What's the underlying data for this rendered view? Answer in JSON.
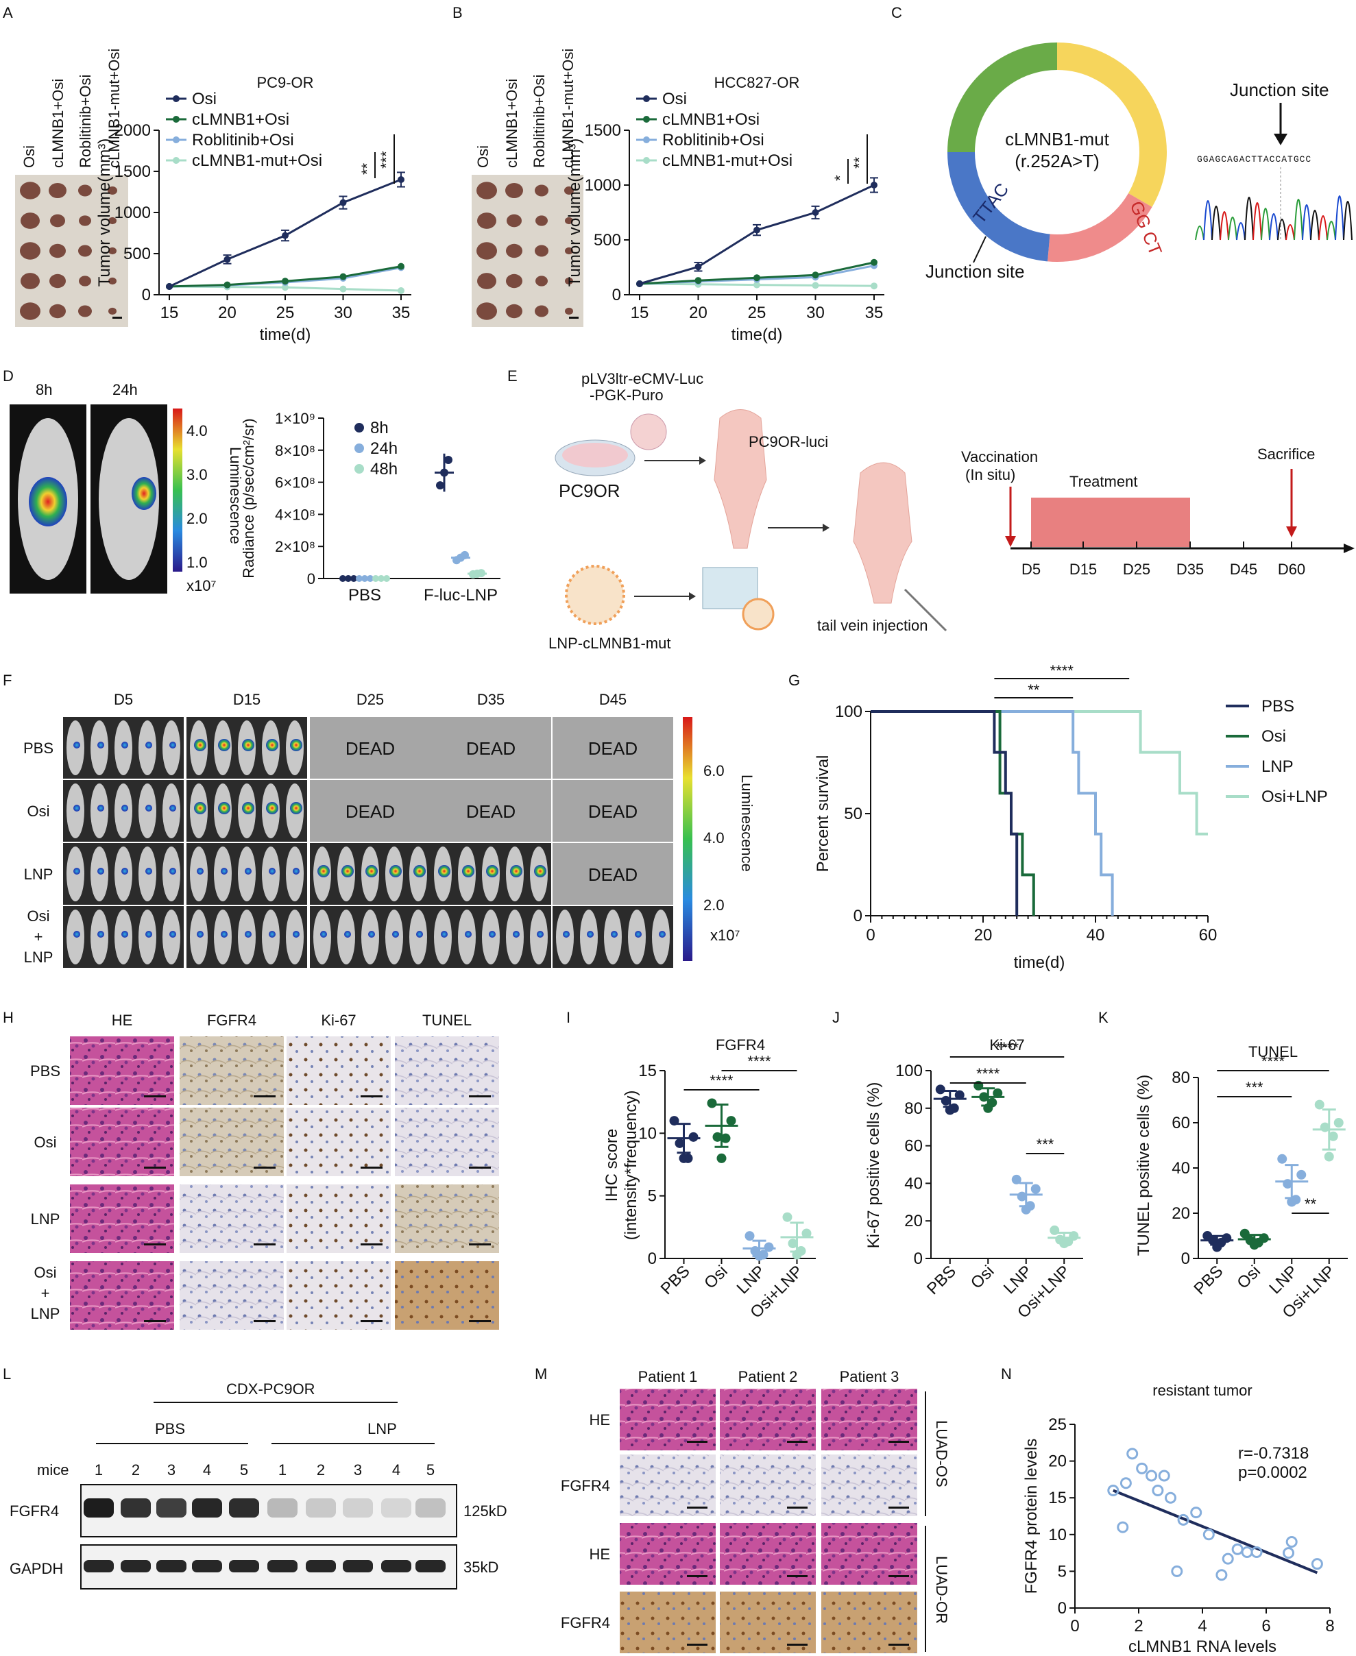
{
  "colors": {
    "pbs": "#1f2d5c",
    "osi": "#1a6a3a",
    "lnp": "#86aedc",
    "osilnp": "#a8ddc8",
    "dead": "#a6a6a6",
    "he": "#c5529c",
    "ihc": "#c9b8a0",
    "ring_green": "#6aab48",
    "ring_yellow": "#f6d55c",
    "ring_pink": "#ef8b8b",
    "ring_blue": "#4a77c7",
    "treat": "#e88080",
    "arrow": "#c31a1a"
  },
  "panels": {
    "A": "A",
    "B": "B",
    "C": "C",
    "D": "D",
    "E": "E",
    "F": "F",
    "G": "G",
    "H": "H",
    "I": "I",
    "J": "J",
    "K": "K",
    "L": "L",
    "M": "M",
    "N": "N"
  },
  "photo_labels_AB": {
    "a": "Osi",
    "b": "cLMNB1+Osi",
    "c": "Roblitinib+Osi",
    "d": "cLMNB1-mut+Osi"
  },
  "chart_data": [
    {
      "id": "A",
      "type": "line",
      "title": "PC9-OR",
      "xlabel": "time(d)",
      "ylabel": "Tumor volume(mm³)",
      "x": [
        15,
        20,
        25,
        30,
        35
      ],
      "xticks": [
        "15",
        "20",
        "25",
        "30",
        "35"
      ],
      "yticks": [
        "0",
        "500",
        "1000",
        "1500",
        "2000"
      ],
      "ylim": [
        0,
        2000
      ],
      "series": [
        {
          "name": "Osi",
          "values": [
            100,
            430,
            720,
            1120,
            1400
          ]
        },
        {
          "name": "cLMNB1+Osi",
          "values": [
            100,
            120,
            165,
            220,
            345
          ]
        },
        {
          "name": "Roblitinib+Osi",
          "values": [
            100,
            115,
            150,
            200,
            330
          ]
        },
        {
          "name": "cLMNB1-mut+Osi",
          "values": [
            100,
            95,
            90,
            70,
            50
          ]
        }
      ],
      "sig": [
        "**",
        "***"
      ]
    },
    {
      "id": "B",
      "type": "line",
      "title": "HCC827-OR",
      "xlabel": "time(d)",
      "ylabel": "Tumor volume(mm³)",
      "x": [
        15,
        20,
        25,
        30,
        35
      ],
      "xticks": [
        "15",
        "20",
        "25",
        "30",
        "35"
      ],
      "yticks": [
        "0",
        "500",
        "1000",
        "1500"
      ],
      "ylim": [
        0,
        1500
      ],
      "series": [
        {
          "name": "Osi",
          "values": [
            100,
            255,
            590,
            750,
            1000
          ]
        },
        {
          "name": "cLMNB1+Osi",
          "values": [
            100,
            130,
            155,
            180,
            295
          ]
        },
        {
          "name": "Roblitinib+Osi",
          "values": [
            100,
            120,
            140,
            160,
            265
          ]
        },
        {
          "name": "cLMNB1-mut+Osi",
          "values": [
            100,
            95,
            90,
            85,
            80
          ]
        }
      ],
      "sig": [
        "*",
        "**"
      ]
    },
    {
      "id": "D",
      "type": "scatter",
      "xlabel": "",
      "ylabel": "Radiance (p/sec/cm²/sr)",
      "categories": [
        "PBS",
        "F-luc-LNP"
      ],
      "yticks": [
        "0",
        "2×10⁸",
        "4×10⁸",
        "6×10⁸",
        "8×10⁸",
        "1×10⁹"
      ],
      "ylim": [
        0,
        1000000000
      ],
      "series": [
        {
          "name": "8h",
          "values": [
            0,
            660000000
          ]
        },
        {
          "name": "24h",
          "values": [
            0,
            130000000
          ]
        },
        {
          "name": "48h",
          "values": [
            0,
            30000000
          ]
        }
      ]
    },
    {
      "id": "G",
      "type": "line",
      "xlabel": "time(d)",
      "ylabel": "Percent survival",
      "xticks": [
        "0",
        "20",
        "40",
        "60"
      ],
      "yticks": [
        "0",
        "50",
        "100"
      ],
      "xlim": [
        0,
        60
      ],
      "ylim": [
        0,
        100
      ],
      "series": [
        {
          "name": "PBS",
          "values": [
            [
              0,
              100
            ],
            [
              22,
              100
            ],
            [
              22,
              80
            ],
            [
              24,
              80
            ],
            [
              24,
              60
            ],
            [
              25,
              60
            ],
            [
              25,
              40
            ],
            [
              26,
              40
            ],
            [
              26,
              0
            ]
          ]
        },
        {
          "name": "Osi",
          "values": [
            [
              0,
              100
            ],
            [
              23,
              100
            ],
            [
              23,
              60
            ],
            [
              25,
              60
            ],
            [
              25,
              40
            ],
            [
              27,
              40
            ],
            [
              27,
              20
            ],
            [
              29,
              20
            ],
            [
              29,
              0
            ]
          ]
        },
        {
          "name": "LNP",
          "values": [
            [
              0,
              100
            ],
            [
              36,
              100
            ],
            [
              36,
              80
            ],
            [
              37,
              80
            ],
            [
              37,
              60
            ],
            [
              40,
              60
            ],
            [
              40,
              40
            ],
            [
              41,
              40
            ],
            [
              41,
              20
            ],
            [
              43,
              20
            ],
            [
              43,
              0
            ]
          ]
        },
        {
          "name": "Osi+LNP",
          "values": [
            [
              0,
              100
            ],
            [
              48,
              100
            ],
            [
              48,
              80
            ],
            [
              55,
              80
            ],
            [
              55,
              60
            ],
            [
              58,
              60
            ],
            [
              58,
              40
            ],
            [
              60,
              40
            ]
          ]
        }
      ],
      "sig": [
        "**",
        "****"
      ]
    },
    {
      "id": "I",
      "type": "scatter",
      "title": "FGFR4",
      "ylabel": "IHC score (intensity*frequency)",
      "categories": [
        "PBS",
        "Osi",
        "LNP",
        "Osi+LNP"
      ],
      "yticks": [
        "0",
        "5",
        "10",
        "15"
      ],
      "ylim": [
        0,
        15
      ],
      "means": [
        9.6,
        10.6,
        0.8,
        1.7
      ],
      "values": [
        [
          11,
          9.7,
          9.2,
          8,
          8
        ],
        [
          12.4,
          11,
          9.7,
          9.6,
          8
        ],
        [
          1.8,
          0.9,
          0.6,
          0.3,
          0.2
        ],
        [
          3.3,
          2,
          1.2,
          0.6,
          0.3
        ]
      ],
      "sig": [
        "****",
        "****"
      ]
    },
    {
      "id": "J",
      "type": "scatter",
      "title": "Ki-67",
      "ylabel": "Ki-67 positive cells (%)",
      "categories": [
        "PBS",
        "Osi",
        "LNP",
        "Osi+LNP"
      ],
      "yticks": [
        "0",
        "20",
        "40",
        "60",
        "80",
        "100"
      ],
      "ylim": [
        0,
        100
      ],
      "means": [
        85,
        86,
        34,
        11
      ],
      "values": [
        [
          90,
          87,
          84,
          80,
          79
        ],
        [
          92,
          88,
          86,
          83,
          80
        ],
        [
          42,
          37,
          33,
          28,
          26
        ],
        [
          15,
          12,
          10,
          9,
          8
        ]
      ],
      "sig": [
        "****",
        "****",
        "***"
      ]
    },
    {
      "id": "K",
      "type": "scatter",
      "title": "TUNEL",
      "ylabel": "TUNEL positive cells (%)",
      "categories": [
        "PBS",
        "Osi",
        "LNP",
        "Osi+LNP"
      ],
      "yticks": [
        "0",
        "20",
        "40",
        "60",
        "80"
      ],
      "ylim": [
        0,
        80
      ],
      "means": [
        8,
        8.5,
        34,
        57
      ],
      "values": [
        [
          10,
          9,
          8,
          7,
          5
        ],
        [
          11,
          9,
          8,
          7,
          6
        ],
        [
          44,
          37,
          33,
          26,
          25
        ],
        [
          68,
          60,
          58,
          54,
          45
        ]
      ],
      "sig": [
        "****",
        "***",
        "**"
      ]
    },
    {
      "id": "N",
      "type": "scatter",
      "title": "resistant tumor",
      "xlabel": "cLMNB1 RNA levels",
      "ylabel": "FGFR4 protein levels",
      "xticks": [
        "0",
        "2",
        "4",
        "6",
        "8"
      ],
      "yticks": [
        "0",
        "5",
        "10",
        "15",
        "20",
        "25"
      ],
      "xlim": [
        0,
        8
      ],
      "ylim": [
        0,
        25
      ],
      "x": [
        1.2,
        1.5,
        1.6,
        1.8,
        2.1,
        2.4,
        2.6,
        2.8,
        3.0,
        3.2,
        3.4,
        3.8,
        4.2,
        4.6,
        4.8,
        5.1,
        5.4,
        5.7,
        6.7,
        6.8,
        7.6
      ],
      "y": [
        16,
        11,
        17,
        21,
        19,
        18,
        16,
        18,
        15,
        5,
        12,
        13,
        10,
        4.5,
        6.7,
        8,
        7.6,
        7.6,
        7.5,
        9,
        6
      ],
      "fit": [
        [
          1.2,
          16
        ],
        [
          7.6,
          4.8
        ]
      ],
      "r": "r=-0.7318",
      "p": "p=0.0002"
    }
  ],
  "A": {
    "title": "PC9-OR",
    "legend": [
      "Osi",
      "cLMNB1+Osi",
      "Roblitinib+Osi",
      "cLMNB1-mut+Osi"
    ],
    "sig1": "**",
    "sig2": "***",
    "xlabel": "time(d)",
    "ylabel": "Tumor volume(mm³)"
  },
  "B": {
    "title": "HCC827-OR",
    "legend": [
      "Osi",
      "cLMNB1+Osi",
      "Roblitinib+Osi",
      "cLMNB1-mut+Osi"
    ],
    "sig1": "*",
    "sig2": "**",
    "xlabel": "time(d)",
    "ylabel": "Tumor volume(mm³)"
  },
  "C": {
    "name": "cLMNB1-mut",
    "mut": "(r.252A>T)",
    "seq1": "GG  CT",
    "seq2": "TTAC",
    "junction1": "Junction site",
    "junction2": "Junction site",
    "chrom": "GGAGCAGACTTACCATGCC"
  },
  "D": {
    "t1": "8h",
    "t2": "24h",
    "lum": "Luminescence",
    "ticks": [
      "4.0",
      "3.0",
      "2.0",
      "1.0"
    ],
    "unit": "x10⁷",
    "legend": [
      "8h",
      "24h",
      "48h"
    ],
    "cats": [
      "PBS",
      "F-luc-LNP"
    ],
    "ylabel": "Radiance (p/sec/cm²/sr)",
    "yticks": [
      "0",
      "2×10⁸",
      "4×10⁸",
      "6×10⁸",
      "8×10⁸",
      "1×10⁹"
    ]
  },
  "E": {
    "plasmid1": "pLV3ltr-eCMV-Luc",
    "plasmid2": "-PGK-Puro",
    "cell": "PC9OR",
    "mouse": "PC9OR-luci",
    "lnp": "LNP-cLMNB1-mut",
    "inj": "tail vein injection",
    "vac1": "Vaccination",
    "vac2": "(In situ)",
    "treat": "Treatment",
    "sac": "Sacrifice",
    "days": [
      "D5",
      "D15",
      "D25",
      "D35",
      "D45",
      "D60"
    ]
  },
  "F": {
    "cols": [
      "D5",
      "D15",
      "D25",
      "D35",
      "D45"
    ],
    "rows": [
      "PBS",
      "Osi",
      "LNP",
      "Osi",
      "+",
      "LNP"
    ],
    "dead": "DEAD",
    "lum": "Luminescence",
    "ticks": [
      "6.0",
      "4.0",
      "2.0"
    ],
    "unit": "x10⁷"
  },
  "G": {
    "legend": [
      "PBS",
      "Osi",
      "LNP",
      "Osi+LNP"
    ],
    "ylabel": "Percent survival",
    "xlabel": "time(d)",
    "xticks": [
      "0",
      "20",
      "40",
      "60"
    ],
    "yticks": [
      "0",
      "50",
      "100"
    ],
    "s1": "**",
    "s2": "****"
  },
  "H": {
    "cols": [
      "HE",
      "FGFR4",
      "Ki-67",
      "TUNEL"
    ],
    "rows": [
      "PBS",
      "Osi",
      "LNP",
      "Osi",
      "+",
      "LNP"
    ]
  },
  "I": {
    "title": "FGFR4",
    "ylabel1": "IHC score",
    "ylabel2": "(intensity*frequency)",
    "cats": [
      "PBS",
      "Osi",
      "LNP",
      "Osi+LNP"
    ],
    "yticks": [
      "0",
      "5",
      "10",
      "15"
    ],
    "s1": "****",
    "s2": "****"
  },
  "J": {
    "title": "Ki-67",
    "ylabel": "Ki-67 positive cells (%)",
    "cats": [
      "PBS",
      "Osi",
      "LNP",
      "Osi+LNP"
    ],
    "yticks": [
      "0",
      "20",
      "40",
      "60",
      "80",
      "100"
    ],
    "s1": "****",
    "s2": "****",
    "s3": "***"
  },
  "K": {
    "title": "TUNEL",
    "ylabel": "TUNEL positive cells (%)",
    "cats": [
      "PBS",
      "Osi",
      "LNP",
      "Osi+LNP"
    ],
    "yticks": [
      "0",
      "20",
      "40",
      "60",
      "80"
    ],
    "s1": "****",
    "s2": "***",
    "s3": "**"
  },
  "L": {
    "title": "CDX-PC9OR",
    "g1": "PBS",
    "g2": "LNP",
    "mice": "mice",
    "nums": [
      "1",
      "2",
      "3",
      "4",
      "5",
      "1",
      "2",
      "3",
      "4",
      "5"
    ],
    "row1": "FGFR4",
    "row2": "GAPDH",
    "kd1": "125kD",
    "kd2": "35kD"
  },
  "M": {
    "cols": [
      "Patient 1",
      "Patient 2",
      "Patient 3"
    ],
    "rows": [
      "HE",
      "FGFR4",
      "HE",
      "FGFR4"
    ],
    "g1": "LUAD-OS",
    "g2": "LUAD-OR"
  },
  "N": {
    "title": "resistant tumor",
    "xlabel": "cLMNB1 RNA levels",
    "ylabel": "FGFR4 protein levels",
    "xticks": [
      "0",
      "2",
      "4",
      "6",
      "8"
    ],
    "yticks": [
      "0",
      "5",
      "10",
      "15",
      "20",
      "25"
    ],
    "r": "r=-0.7318",
    "p": "p=0.0002"
  }
}
